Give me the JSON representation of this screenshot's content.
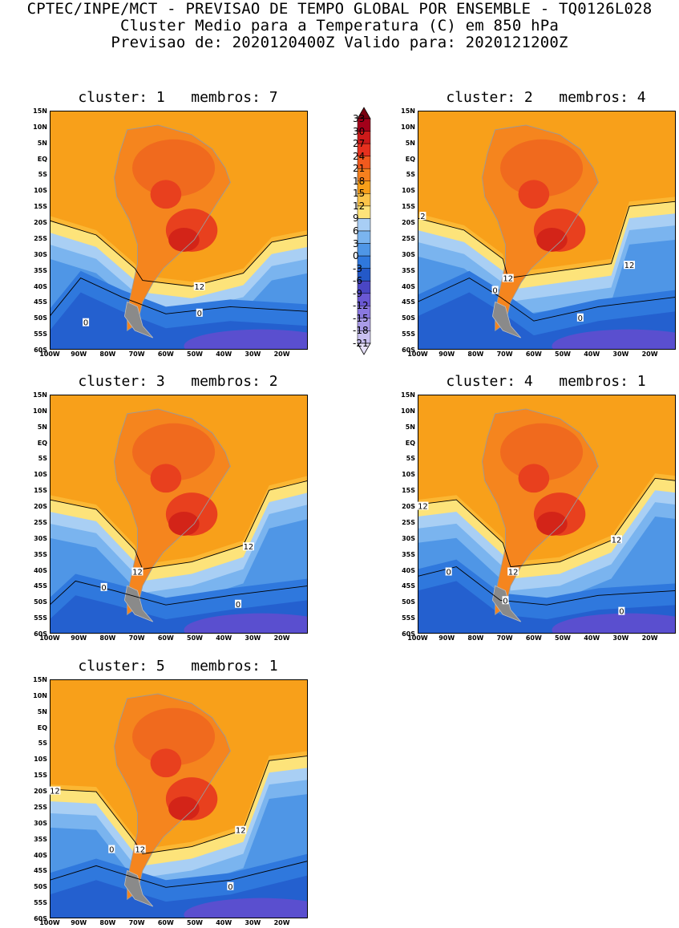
{
  "header": {
    "line1": "CPTEC/INPE/MCT - PREVISAO DE TEMPO GLOBAL POR ENSEMBLE - TQ0126L028",
    "line2": "Cluster Medio para a Temperatura (C) em 850 hPa",
    "line3": "Previsao de: 2020120400Z   Valido para: 2020121200Z"
  },
  "lat_labels": [
    "15N",
    "10N",
    "5N",
    "EQ",
    "5S",
    "10S",
    "15S",
    "20S",
    "25S",
    "30S",
    "35S",
    "40S",
    "45S",
    "50S",
    "55S",
    "60S"
  ],
  "lon_labels": [
    "100W",
    "90W",
    "80W",
    "70W",
    "60W",
    "50W",
    "40W",
    "30W",
    "20W"
  ],
  "colorbar": {
    "levels": [
      "33",
      "30",
      "27",
      "24",
      "21",
      "18",
      "15",
      "12",
      "9",
      "6",
      "3",
      "0",
      "-3",
      "-6",
      "-9",
      "-12",
      "-15",
      "-18",
      "-21"
    ],
    "colors": [
      "#7a0010",
      "#a3001a",
      "#cc1a1a",
      "#e6301e",
      "#f05a1e",
      "#f5801e",
      "#f79f1a",
      "#fbc44a",
      "#fde37a",
      "#a8cef5",
      "#7ab4ef",
      "#4f96e6",
      "#2f78dd",
      "#2459c8",
      "#4a46c4",
      "#6a58d4",
      "#8a78e0",
      "#aa9ce8",
      "#c9c0f0",
      "#e6e0f8"
    ]
  },
  "panels": [
    {
      "title": "cluster: 1   membros: 7",
      "contours": [
        "12",
        "0",
        "0"
      ]
    },
    {
      "title": "cluster: 2   membros: 4",
      "contours": [
        "12",
        "12",
        "2",
        "0",
        "0"
      ]
    },
    {
      "title": "cluster: 3   membros: 2",
      "contours": [
        "12",
        "12",
        "0",
        "0"
      ]
    },
    {
      "title": "cluster: 4   membros: 1",
      "contours": [
        "12",
        "12",
        "12",
        "0",
        "0",
        "0"
      ]
    },
    {
      "title": "cluster: 5   membros: 1",
      "contours": [
        "12",
        "12",
        "12",
        "0",
        "0"
      ]
    }
  ]
}
